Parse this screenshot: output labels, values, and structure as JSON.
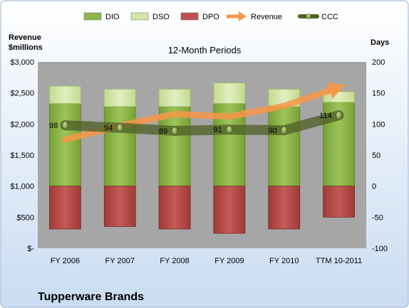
{
  "chart_data": {
    "type": "bar",
    "title": "12-Month Periods",
    "company": "Tupperware Brands",
    "left_axis_label_line1": "Revenue",
    "left_axis_label_line2": "$millions",
    "right_axis_label": "Days",
    "categories": [
      "FY 2006",
      "FY 2007",
      "FY 2008",
      "FY 2009",
      "FY 2010",
      "TTM 10-2011"
    ],
    "left_ylim": [
      0,
      3000
    ],
    "left_ticks": [
      "$-",
      "$500",
      "$1,000",
      "$1,500",
      "$2,000",
      "$2,500",
      "$3,000"
    ],
    "right_ylim": [
      -100,
      200
    ],
    "right_ticks": [
      "-100",
      "-50",
      "0",
      "50",
      "100",
      "150",
      "200"
    ],
    "legend_position": "top",
    "legend": [
      {
        "name": "DIO",
        "type": "bar",
        "color": "#8db54a"
      },
      {
        "name": "DSO",
        "type": "bar",
        "color": "#d3e6a6"
      },
      {
        "name": "DPO",
        "type": "bar",
        "color": "#c0504d"
      },
      {
        "name": "Revenue",
        "type": "arrow",
        "color": "#f79646"
      },
      {
        "name": "CCC",
        "type": "line",
        "color": "#4f6228"
      }
    ],
    "series": [
      {
        "name": "DIO",
        "axis": "right",
        "values": [
          133,
          128,
          128,
          133,
          128,
          135
        ]
      },
      {
        "name": "DSO",
        "axis": "right",
        "values": [
          28,
          28,
          28,
          33,
          28,
          17
        ]
      },
      {
        "name": "DPO",
        "axis": "right",
        "values": [
          -69,
          -65,
          -69,
          -76,
          -69,
          -50
        ]
      },
      {
        "name": "Revenue",
        "axis": "left",
        "values": [
          1750,
          1970,
          2160,
          2120,
          2290,
          2590
        ]
      },
      {
        "name": "CCC",
        "axis": "right",
        "values": [
          98,
          94,
          89,
          91,
          90,
          114
        ]
      }
    ],
    "ccc_labels": [
      "98",
      "94",
      "89",
      "91",
      "90",
      "114"
    ],
    "grid": false,
    "colors": {
      "plot_bg": "#a6a6a6",
      "page_bg": "#d4e3f4",
      "dio_fill": "#8db54a",
      "dso_fill": "#d3e6a6",
      "dpo_fill": "#c0504d",
      "revenue_arrow": "#f79646",
      "ccc_line": "#4f6228"
    }
  }
}
